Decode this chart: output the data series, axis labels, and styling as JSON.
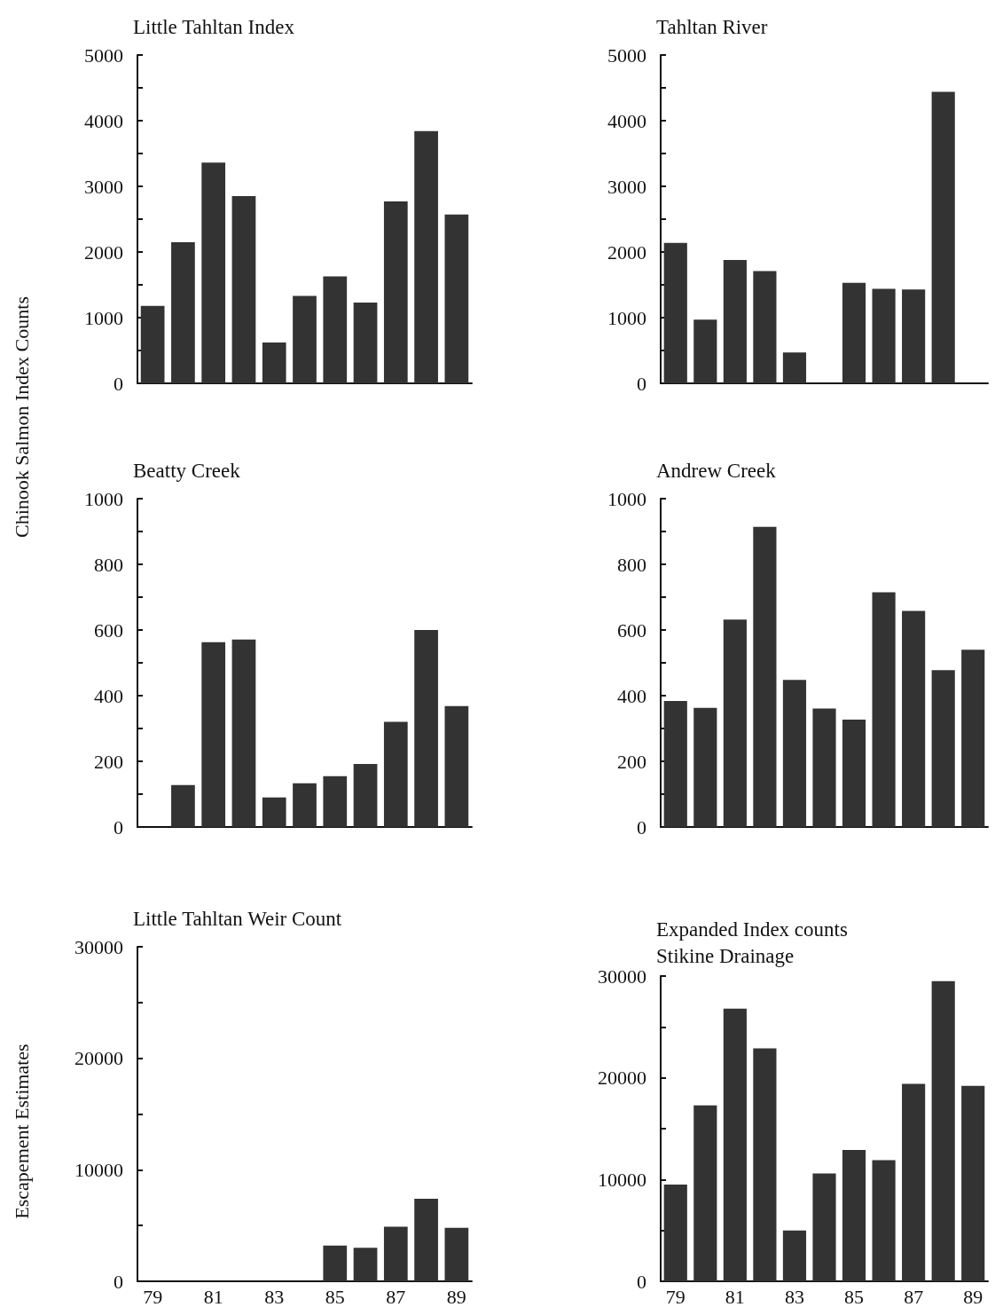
{
  "chart_data": [
    {
      "type": "bar",
      "title": "Little Tahltan Index",
      "ylabel": "Chinook Salmon Index Counts",
      "categories": [
        "79",
        null,
        "81",
        null,
        "83",
        null,
        "85",
        null,
        "87",
        null,
        "89"
      ],
      "values": [
        1180,
        2150,
        3360,
        2850,
        620,
        1330,
        1630,
        1230,
        2770,
        3840,
        2570
      ],
      "color": "#333333",
      "ylim": [
        0,
        5000
      ],
      "yticks": [
        0,
        {
          "value": 500,
          "label": null
        },
        1000,
        {
          "value": 1500,
          "label": null
        },
        2000,
        {
          "value": 2500,
          "label": null
        },
        3000,
        {
          "value": 3500,
          "label": null
        },
        4000,
        {
          "value": 4500,
          "label": null
        },
        5000
      ],
      "grid": false,
      "tick_labels": "y"
    },
    {
      "type": "bar",
      "title": "Tahltan River",
      "categories": [
        "79",
        null,
        "81",
        null,
        "83",
        null,
        "85",
        null,
        "87",
        null,
        "89"
      ],
      "values": [
        2140,
        970,
        1880,
        1710,
        470,
        null,
        1530,
        1440,
        1430,
        4440,
        null
      ],
      "color": "#333333",
      "ylim": [
        0,
        5000
      ],
      "yticks": [
        0,
        {
          "value": 500,
          "label": null
        },
        1000,
        {
          "value": 1500,
          "label": null
        },
        2000,
        {
          "value": 2500,
          "label": null
        },
        3000,
        {
          "value": 3500,
          "label": null
        },
        4000,
        {
          "value": 4500,
          "label": null
        },
        5000
      ],
      "grid": false,
      "tick_labels": "y"
    },
    {
      "type": "bar",
      "title": "Beatty Creek",
      "categories": [
        "79",
        null,
        "81",
        null,
        "83",
        null,
        "85",
        null,
        "87",
        null,
        "89"
      ],
      "values": [
        null,
        128,
        563,
        571,
        90,
        133,
        155,
        192,
        320,
        600,
        368
      ],
      "color": "#333333",
      "ylim": [
        0,
        1000
      ],
      "yticks": [
        0,
        {
          "value": 100,
          "label": null
        },
        200,
        {
          "value": 300,
          "label": null
        },
        400,
        {
          "value": 500,
          "label": null
        },
        600,
        {
          "value": 700,
          "label": null
        },
        800,
        {
          "value": 900,
          "label": null
        },
        1000
      ],
      "grid": false,
      "tick_labels": "y"
    },
    {
      "type": "bar",
      "title": "Andrew Creek",
      "categories": [
        "79",
        null,
        "81",
        null,
        "83",
        null,
        "85",
        null,
        "87",
        null,
        "89"
      ],
      "values": [
        384,
        363,
        632,
        914,
        448,
        361,
        327,
        715,
        658,
        478,
        540
      ],
      "color": "#333333",
      "ylim": [
        0,
        1000
      ],
      "yticks": [
        0,
        {
          "value": 100,
          "label": null
        },
        200,
        {
          "value": 300,
          "label": null
        },
        400,
        {
          "value": 500,
          "label": null
        },
        600,
        {
          "value": 700,
          "label": null
        },
        800,
        {
          "value": 900,
          "label": null
        },
        1000
      ],
      "grid": false,
      "tick_labels": "y"
    },
    {
      "type": "bar",
      "title": "Little Tahltan Weir Count",
      "ylabel": "Escapement Estimates",
      "categories": [
        "79",
        null,
        "81",
        null,
        "83",
        null,
        "85",
        null,
        "87",
        null,
        "89"
      ],
      "values": [
        null,
        null,
        null,
        null,
        null,
        null,
        3200,
        3000,
        4900,
        7400,
        4800
      ],
      "color": "#333333",
      "ylim": [
        0,
        30000
      ],
      "yticks": [
        0,
        {
          "value": 5000,
          "label": null
        },
        10000,
        {
          "value": 15000,
          "label": null
        },
        20000,
        {
          "value": 25000,
          "label": null
        },
        30000
      ],
      "grid": false
    },
    {
      "type": "bar",
      "title": "Expanded Index counts\nStikine Drainage",
      "categories": [
        "79",
        null,
        "81",
        null,
        "83",
        null,
        "85",
        null,
        "87",
        null,
        "89"
      ],
      "values": [
        9500,
        17300,
        26800,
        22900,
        5000,
        10600,
        12900,
        11900,
        19400,
        29500,
        19200
      ],
      "color": "#333333",
      "ylim": [
        0,
        30000
      ],
      "yticks": [
        0,
        {
          "value": 5000,
          "label": null
        },
        10000,
        {
          "value": 15000,
          "label": null
        },
        20000,
        {
          "value": 25000,
          "label": null
        },
        30000
      ],
      "grid": false
    }
  ]
}
